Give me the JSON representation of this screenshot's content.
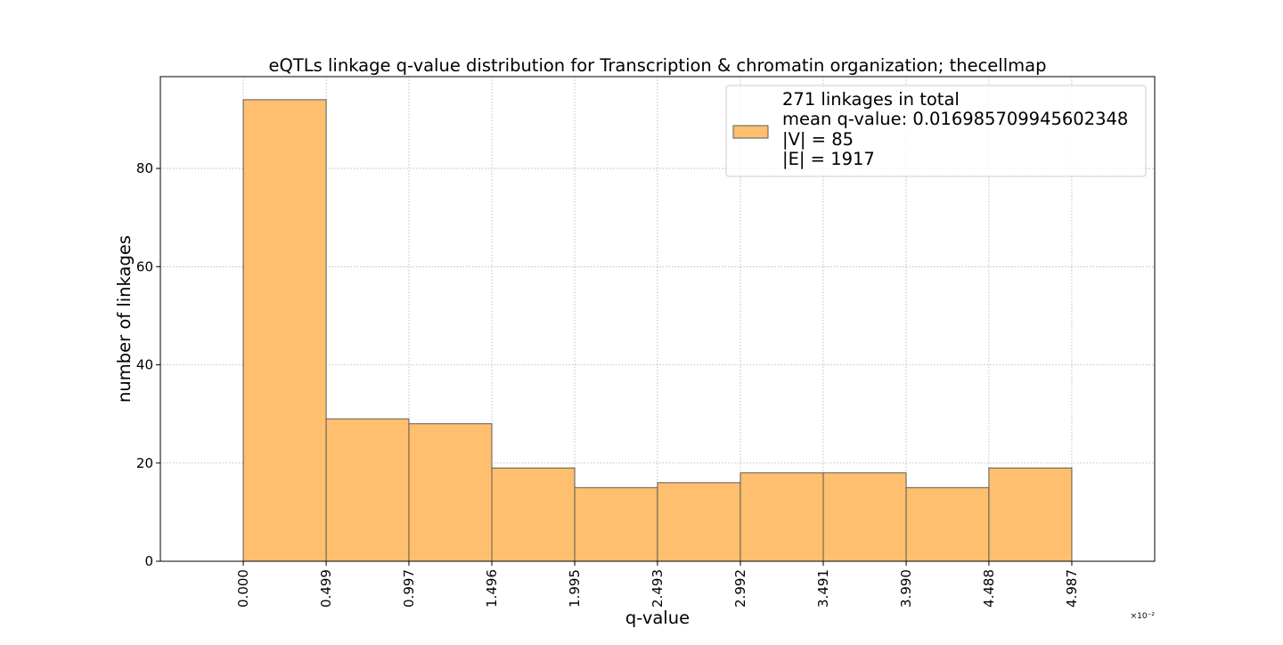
{
  "chart_data": {
    "type": "bar",
    "title": "eQTLs linkage q-value distribution for Transcription & chromatin organization; thecellmap",
    "xlabel": "q-value",
    "ylabel": "number of linkages",
    "x_multiplier": "×10⁻²",
    "bin_edges": [
      0.0,
      0.499,
      0.997,
      1.496,
      1.995,
      2.493,
      2.992,
      3.491,
      3.99,
      4.488,
      4.987
    ],
    "x_tick_labels": [
      "0.000",
      "0.499",
      "0.997",
      "1.496",
      "1.995",
      "2.493",
      "2.992",
      "3.491",
      "3.990",
      "4.488",
      "4.987"
    ],
    "values": [
      94,
      29,
      28,
      19,
      15,
      16,
      18,
      18,
      15,
      19
    ],
    "xlim": [
      -0.499,
      5.486
    ],
    "ylim": [
      0,
      98.7
    ],
    "y_ticks": [
      0,
      20,
      40,
      60,
      80
    ],
    "y_tick_labels": [
      "0",
      "20",
      "40",
      "60",
      "80"
    ],
    "grid": true,
    "bar_color": "#ffbf6e",
    "edge_color": "#5a5a5a",
    "legend": {
      "placement": "top-right",
      "lines": [
        "271 linkages in total",
        "mean q-value: 0.016985709945602348",
        "|V| = 85",
        "|E| = 1917"
      ]
    }
  }
}
